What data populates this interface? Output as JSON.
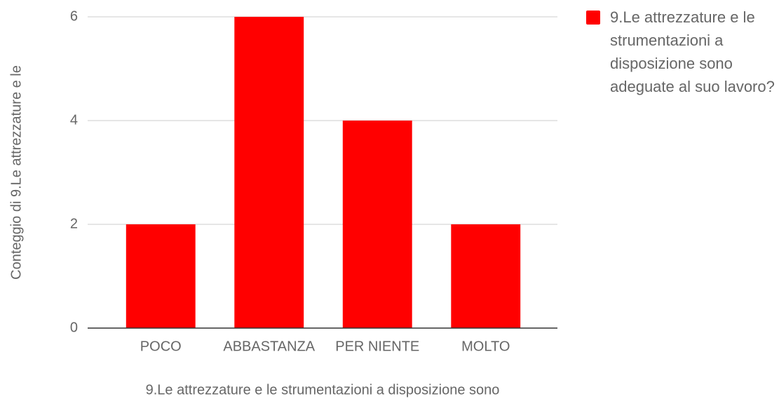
{
  "chart_data": {
    "type": "bar",
    "x_label": "9.Le attrezzature e le strumentazioni a disposizione sono",
    "y_label": "Conteggio di 9.Le attrezzature e le",
    "categories": [
      "POCO",
      "ABBASTANZA",
      "PER NIENTE",
      "MOLTO"
    ],
    "series": [
      {
        "name": "9.Le attrezzature e le strumentazioni a disposizione sono adeguate al suo lavoro?",
        "color": "#ff0000",
        "values": [
          2,
          6,
          4,
          2
        ]
      }
    ],
    "ylim": [
      0,
      6
    ],
    "yticks": [
      0,
      2,
      4,
      6
    ],
    "grid": true,
    "legend": "right"
  }
}
